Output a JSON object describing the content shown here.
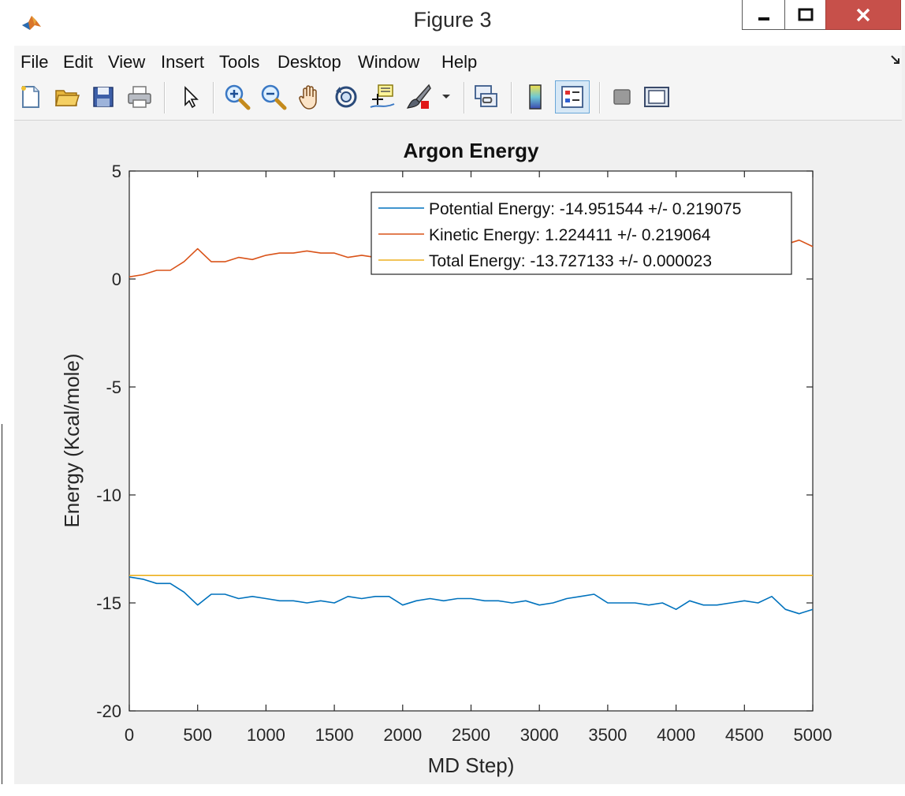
{
  "window": {
    "title": "Figure 3",
    "icon": "matlab-logo-icon"
  },
  "menubar": {
    "items": [
      "File",
      "Edit",
      "View",
      "Insert",
      "Tools",
      "Desktop",
      "Window",
      "Help"
    ]
  },
  "toolbar": {
    "items": [
      {
        "name": "new-figure-icon"
      },
      {
        "name": "open-file-icon"
      },
      {
        "name": "save-icon"
      },
      {
        "name": "print-icon"
      },
      {
        "name": "edit-plot-arrow-icon"
      },
      {
        "name": "zoom-in-icon"
      },
      {
        "name": "zoom-out-icon"
      },
      {
        "name": "pan-hand-icon"
      },
      {
        "name": "rotate-3d-icon"
      },
      {
        "name": "data-cursor-icon"
      },
      {
        "name": "brush-icon"
      },
      {
        "name": "brush-dropdown-icon"
      },
      {
        "name": "link-plot-icon"
      },
      {
        "name": "colorbar-icon"
      },
      {
        "name": "legend-icon"
      },
      {
        "name": "hide-plot-tools-icon"
      },
      {
        "name": "show-plot-tools-icon"
      }
    ]
  },
  "colors": {
    "potential": "#0072bd",
    "kinetic": "#d95319",
    "total": "#edb120",
    "close_button": "#c7504a"
  },
  "chart_data": {
    "type": "line",
    "title": "Argon Energy",
    "xlabel": "MD Step)",
    "ylabel": "Energy (Kcal/mole)",
    "xlim": [
      0,
      5000
    ],
    "ylim": [
      -20,
      5
    ],
    "xticks": [
      "0",
      "500",
      "1000",
      "1500",
      "2000",
      "2500",
      "3000",
      "3500",
      "4000",
      "4500",
      "5000"
    ],
    "yticks": [
      "5",
      "0",
      "-5",
      "-10",
      "-15",
      "-20"
    ],
    "grid": false,
    "legend_position": "top-right",
    "x": [
      0,
      100,
      200,
      300,
      400,
      500,
      600,
      700,
      800,
      900,
      1000,
      1100,
      1200,
      1300,
      1400,
      1500,
      1600,
      1700,
      1800,
      1900,
      2000,
      2100,
      2200,
      2300,
      2400,
      2500,
      2600,
      2700,
      2800,
      2900,
      3000,
      3100,
      3200,
      3300,
      3400,
      3500,
      3600,
      3700,
      3800,
      3900,
      4000,
      4100,
      4200,
      4300,
      4400,
      4500,
      4600,
      4700,
      4800,
      4900,
      5000
    ],
    "series": [
      {
        "name": "Potential Energy: -14.951544 +/- 0.219075",
        "color": "#0072bd",
        "values": [
          -13.8,
          -13.9,
          -14.1,
          -14.1,
          -14.5,
          -15.1,
          -14.6,
          -14.6,
          -14.8,
          -14.7,
          -14.8,
          -14.9,
          -14.9,
          -15.0,
          -14.9,
          -15.0,
          -14.7,
          -14.8,
          -14.7,
          -14.7,
          -15.1,
          -14.9,
          -14.8,
          -14.9,
          -14.8,
          -14.8,
          -14.9,
          -14.9,
          -15.0,
          -14.9,
          -15.1,
          -15.0,
          -14.8,
          -14.7,
          -14.6,
          -15.0,
          -15.0,
          -15.0,
          -15.1,
          -15.0,
          -15.3,
          -14.9,
          -15.1,
          -15.1,
          -15.0,
          -14.9,
          -15.0,
          -14.7,
          -15.3,
          -15.5,
          -15.3
        ]
      },
      {
        "name": "Kinetic Energy: 1.224411 +/- 0.219064",
        "color": "#d95319",
        "values": [
          0.1,
          0.2,
          0.4,
          0.4,
          0.8,
          1.4,
          0.8,
          0.8,
          1.0,
          0.9,
          1.1,
          1.2,
          1.2,
          1.3,
          1.2,
          1.2,
          1.0,
          1.1,
          1.0,
          1.0,
          1.4,
          1.2,
          1.1,
          1.2,
          1.1,
          1.1,
          1.2,
          1.2,
          1.3,
          1.2,
          1.4,
          1.3,
          1.1,
          1.0,
          0.9,
          1.3,
          1.3,
          1.3,
          1.4,
          1.3,
          1.6,
          1.2,
          1.4,
          1.4,
          1.3,
          1.2,
          1.3,
          1.0,
          1.6,
          1.8,
          1.5
        ]
      },
      {
        "name": "Total Energy: -13.727133 +/- 0.000023",
        "color": "#edb120",
        "values": [
          -13.73,
          -13.73,
          -13.73,
          -13.73,
          -13.73,
          -13.73,
          -13.73,
          -13.73,
          -13.73,
          -13.73,
          -13.73,
          -13.73,
          -13.73,
          -13.73,
          -13.73,
          -13.73,
          -13.73,
          -13.73,
          -13.73,
          -13.73,
          -13.73,
          -13.73,
          -13.73,
          -13.73,
          -13.73,
          -13.73,
          -13.73,
          -13.73,
          -13.73,
          -13.73,
          -13.73,
          -13.73,
          -13.73,
          -13.73,
          -13.73,
          -13.73,
          -13.73,
          -13.73,
          -13.73,
          -13.73,
          -13.73,
          -13.73,
          -13.73,
          -13.73,
          -13.73,
          -13.73,
          -13.73,
          -13.73,
          -13.73,
          -13.73,
          -13.73
        ]
      }
    ]
  }
}
